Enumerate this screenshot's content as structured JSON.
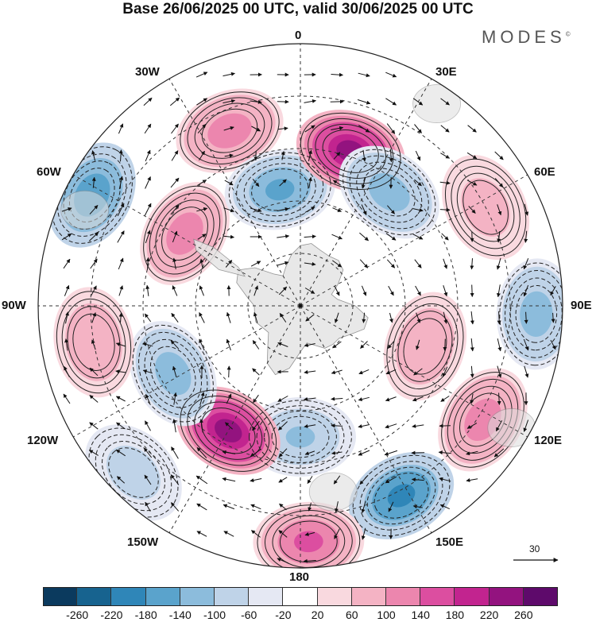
{
  "title": "Base 26/06/2025 00 UTC, valid 30/06/2025 00 UTC",
  "brand": "MODES",
  "brand_mark": "©",
  "longitude_labels": {
    "top": "0",
    "top_right": "30E",
    "right_upper": "60E",
    "right": "90E",
    "right_lower": "120E",
    "bottom_right": "150E",
    "bottom": "180",
    "bottom_left": "150W",
    "left_lower": "120W",
    "left": "90W",
    "left_upper": "60W",
    "top_left": "30W"
  },
  "reference_vector_label": "30",
  "colorbar": {
    "colors": [
      "#0b3a5e",
      "#17638f",
      "#2f86b8",
      "#5aa3cc",
      "#8cbcdc",
      "#bfd3e8",
      "#e5e8f3",
      "#ffffff",
      "#f9d9df",
      "#f4b3c4",
      "#ec86ae",
      "#dc4ea0",
      "#c2248f",
      "#93137f",
      "#5e0a6b"
    ],
    "tick_labels": [
      "-260",
      "-220",
      "-180",
      "-140",
      "-100",
      "-60",
      "-20",
      "20",
      "60",
      "100",
      "140",
      "180",
      "220",
      "260"
    ]
  },
  "anomaly_centers": [
    {
      "sign": "positive",
      "strength": 0.55,
      "lon": -22,
      "colat": 0.72
    },
    {
      "sign": "negative",
      "strength": 0.7,
      "lon": -62,
      "colat": 0.9
    },
    {
      "sign": "positive",
      "strength": 0.5,
      "lon": -58,
      "colat": 0.52
    },
    {
      "sign": "negative",
      "strength": 0.6,
      "lon": -10,
      "colat": 0.45
    },
    {
      "sign": "positive",
      "strength": 0.95,
      "lon": 18,
      "colat": 0.62
    },
    {
      "sign": "negative",
      "strength": 0.55,
      "lon": 38,
      "colat": 0.55
    },
    {
      "sign": "positive",
      "strength": 0.35,
      "lon": 62,
      "colat": 0.8
    },
    {
      "sign": "negative",
      "strength": 0.5,
      "lon": 92,
      "colat": 0.9
    },
    {
      "sign": "positive",
      "strength": 0.4,
      "lon": 108,
      "colat": 0.5
    },
    {
      "sign": "positive",
      "strength": 0.55,
      "lon": 122,
      "colat": 0.82
    },
    {
      "sign": "negative",
      "strength": 0.8,
      "lon": 152,
      "colat": 0.82
    },
    {
      "sign": "positive",
      "strength": 0.6,
      "lon": 178,
      "colat": 0.9
    },
    {
      "sign": "negative",
      "strength": 0.45,
      "lon": 180,
      "colat": 0.5
    },
    {
      "sign": "positive",
      "strength": 0.95,
      "lon": -150,
      "colat": 0.55
    },
    {
      "sign": "negative",
      "strength": 0.55,
      "lon": -118,
      "colat": 0.55
    },
    {
      "sign": "positive",
      "strength": 0.4,
      "lon": -100,
      "colat": 0.8
    },
    {
      "sign": "negative",
      "strength": 0.35,
      "lon": -135,
      "colat": 0.9
    }
  ]
}
